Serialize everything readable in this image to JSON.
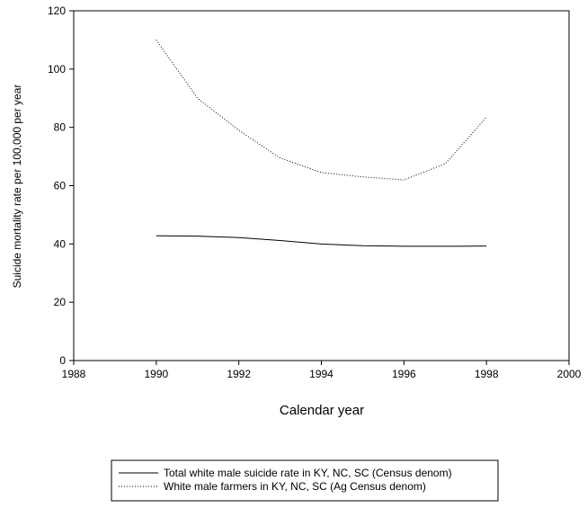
{
  "chart_data": {
    "type": "line",
    "x_label": "Calendar year",
    "y_label": "Suicide mortality rate per 100,000 per year",
    "x": [
      1990,
      1991,
      1992,
      1993,
      1994,
      1995,
      1996,
      1997,
      1998
    ],
    "series": [
      {
        "name": "Total white male suicide rate in KY, NC, SC (Census denom)",
        "color": "#000000",
        "style": "solid",
        "values": [
          42.8,
          42.7,
          42.2,
          41.2,
          40.0,
          39.4,
          39.2,
          39.2,
          39.3
        ]
      },
      {
        "name": "White male farmers in KY, NC, SC (Ag Census denom)",
        "color": "#000000",
        "style": "dotted",
        "values": [
          110,
          90,
          79,
          69.5,
          64.5,
          63,
          62,
          67.5,
          83.5
        ]
      }
    ],
    "xlim": [
      1988,
      2000
    ],
    "xticks": [
      1988,
      1990,
      1992,
      1994,
      1996,
      1998,
      2000
    ],
    "ylim": [
      0,
      120
    ],
    "yticks": [
      0,
      20,
      40,
      60,
      80,
      100,
      120
    ]
  }
}
